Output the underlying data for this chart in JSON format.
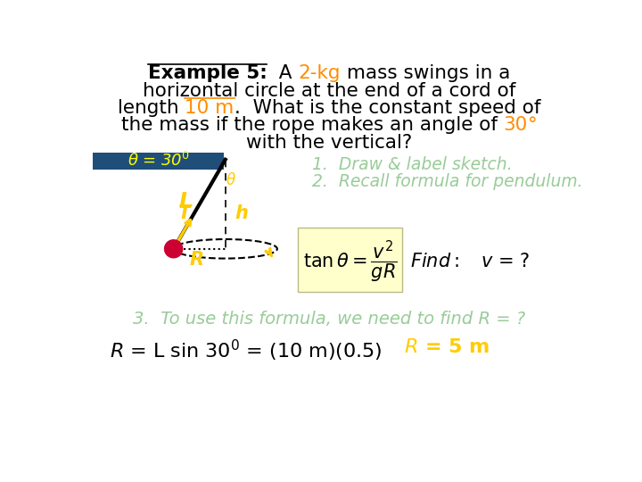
{
  "bg_color": "#ffffff",
  "sketch_bg": "#1f4e79",
  "sketch_label_color": "#ffff00",
  "step1": "1.  Draw & label sketch.",
  "step2": "2.  Recall formula for pendulum.",
  "step3": "3.  To use this formula, we need to find R = ?",
  "steps_color": "#99cc99",
  "formula_box_bg": "#ffffcc",
  "yellow": "#ffcc00",
  "orange": "#ff8c00",
  "red_mass": "#cc0033",
  "black": "#000000"
}
